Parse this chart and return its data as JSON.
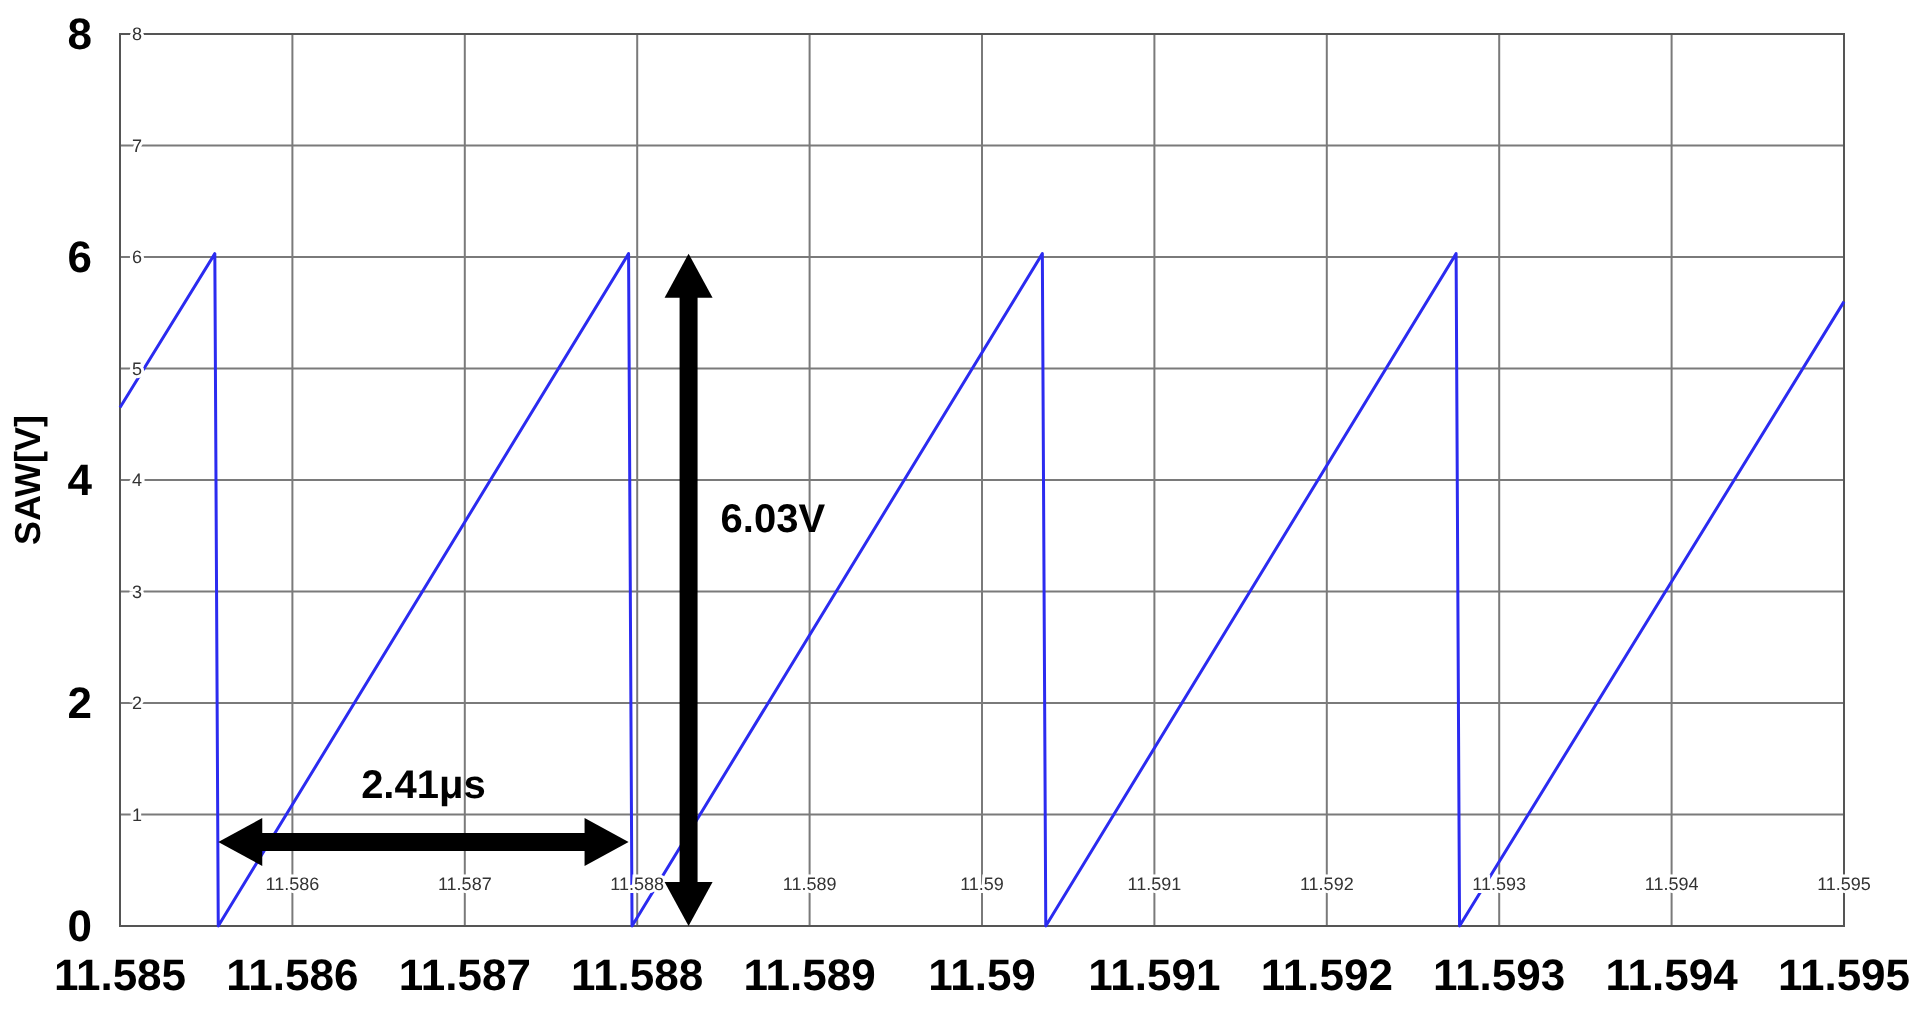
{
  "chart_data": {
    "type": "line",
    "ylabel": "SAW[V]",
    "x": [
      11.585,
      11.58555,
      11.58557,
      11.58795,
      11.58797,
      11.59035,
      11.59037,
      11.59275,
      11.59277,
      11.595
    ],
    "series": [
      {
        "color": "#2b2bf0",
        "values": [
          4.65,
          6.03,
          0,
          6.03,
          0,
          6.03,
          0,
          6.03,
          0,
          5.6
        ]
      }
    ],
    "xlim": [
      11.585,
      11.595
    ],
    "xticks": [
      11.585,
      11.586,
      11.587,
      11.588,
      11.589,
      11.59,
      11.591,
      11.592,
      11.593,
      11.594,
      11.595
    ],
    "x2lim": [
      11.585,
      11.595
    ],
    "x2ticks": [
      11.586,
      11.587,
      11.588,
      11.589,
      11.59,
      11.591,
      11.592,
      11.593,
      11.594,
      11.595
    ],
    "ylim": [
      0,
      8
    ],
    "yticks": [
      0,
      2,
      4,
      6,
      8
    ],
    "y2lim": [
      0,
      8
    ],
    "y2ticks": [
      1,
      2,
      3,
      4,
      5,
      6,
      7,
      8
    ],
    "grid": true,
    "marker": "none",
    "line_style": "solid",
    "annotations": [
      "6.03V",
      "2.41μs"
    ]
  }
}
